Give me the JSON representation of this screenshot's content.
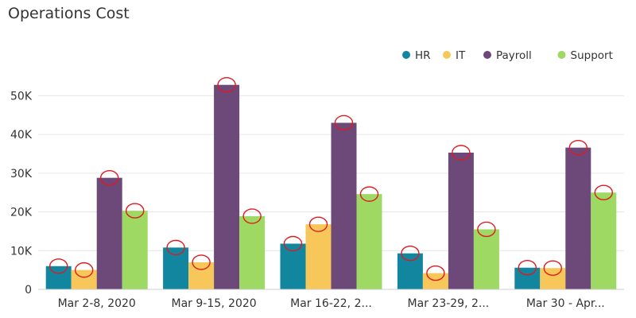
{
  "chart_data": {
    "type": "bar",
    "title": "Operations Cost",
    "xlabel": "",
    "ylabel": "",
    "categories": [
      "Mar 2-8, 2020",
      "Mar 9-15, 2020",
      "Mar 16-22, 2...",
      "Mar 23-29, 2...",
      "Mar 30 - Apr..."
    ],
    "series": [
      {
        "name": "HR",
        "color": "#13869f",
        "values": [
          6000,
          10800,
          11800,
          9300,
          5600
        ]
      },
      {
        "name": "IT",
        "color": "#f8c75a",
        "values": [
          5000,
          7000,
          16800,
          4200,
          5500
        ]
      },
      {
        "name": "Payroll",
        "color": "#6d4979",
        "values": [
          28800,
          52800,
          43000,
          35300,
          36600
        ]
      },
      {
        "name": "Support",
        "color": "#9ed963",
        "values": [
          20300,
          18900,
          24600,
          15500,
          25000
        ]
      }
    ],
    "ylim": [
      0,
      55000
    ],
    "yticks": [
      0,
      10000,
      20000,
      30000,
      40000,
      50000
    ],
    "ytick_labels": [
      "0",
      "10K",
      "20K",
      "30K",
      "40K",
      "50K"
    ],
    "grid": true,
    "legend_position": "top-right",
    "marker_annotation": "red circle at top of each bar",
    "annotation_color": "#e0191f"
  }
}
